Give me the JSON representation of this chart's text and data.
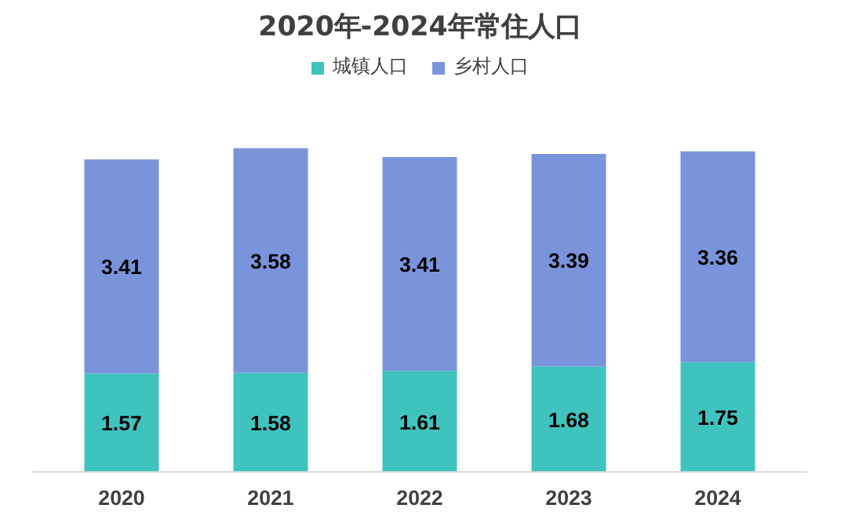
{
  "chart_data": {
    "type": "bar",
    "title": "2020年-2024年常住人口",
    "stacked": true,
    "data_labels": true,
    "legend": "top",
    "grid": false,
    "categories": [
      "2020",
      "2021",
      "2022",
      "2023",
      "2024"
    ],
    "series": [
      {
        "name": "城镇人口",
        "color": "#3fc3bf",
        "values": [
          1.57,
          1.58,
          1.61,
          1.68,
          1.75
        ]
      },
      {
        "name": "乡村人口",
        "color": "#7a94dc",
        "values": [
          3.41,
          3.58,
          3.41,
          3.39,
          3.36
        ]
      }
    ]
  }
}
